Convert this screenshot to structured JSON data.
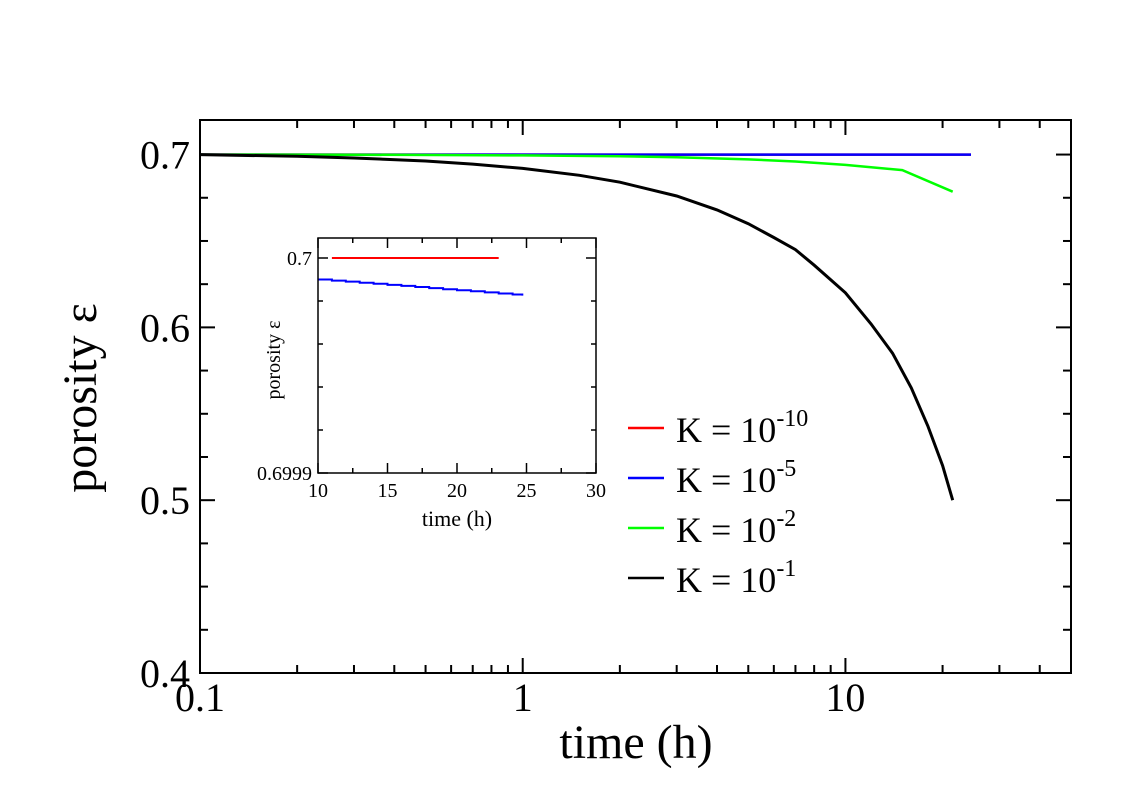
{
  "chart_data": [
    {
      "type": "line",
      "title": "",
      "xlabel": "time",
      "xlabel_unit": "(h)",
      "ylabel": "porosity",
      "ylabel_symbol": "ε",
      "xscale": "log",
      "xlim": [
        0.1,
        50
      ],
      "ylim": [
        0.4,
        0.72
      ],
      "xticks": [
        0.1,
        1,
        10
      ],
      "xtick_labels": [
        "0.1",
        "1",
        "10"
      ],
      "yticks": [
        0.4,
        0.5,
        0.6,
        0.7
      ],
      "ytick_labels": [
        "0.4",
        "0.5",
        "0.6",
        "0.7"
      ],
      "grid": false,
      "legend_position": "center-right",
      "series": [
        {
          "name": "K = 10^-10",
          "label_base": "K = 10",
          "label_exp": "-10",
          "color": "#ff0000",
          "x": [
            0.1,
            24.5
          ],
          "y": [
            0.7,
            0.7
          ]
        },
        {
          "name": "K = 10^-5",
          "label_base": "K = 10",
          "label_exp": "-5",
          "color": "#0000ff",
          "x": [
            0.1,
            24.5
          ],
          "y": [
            0.7,
            0.7
          ]
        },
        {
          "name": "K = 10^-2",
          "label_base": "K = 10",
          "label_exp": "-2",
          "color": "#00ff00",
          "x": [
            0.1,
            0.3,
            1,
            2,
            3,
            5,
            7,
            10,
            15,
            21.5
          ],
          "y": [
            0.7,
            0.6999,
            0.6995,
            0.699,
            0.6985,
            0.6972,
            0.696,
            0.694,
            0.691,
            0.6785
          ]
        },
        {
          "name": "K = 10^-1",
          "label_base": "K = 10",
          "label_exp": "-1",
          "color": "#000000",
          "x": [
            0.1,
            0.2,
            0.3,
            0.5,
            0.7,
            1,
            1.5,
            2,
            3,
            4,
            5,
            6,
            7,
            8,
            10,
            12,
            14,
            16,
            18,
            20,
            21.5
          ],
          "y": [
            0.7,
            0.699,
            0.698,
            0.6963,
            0.6945,
            0.692,
            0.688,
            0.684,
            0.676,
            0.668,
            0.66,
            0.652,
            0.645,
            0.636,
            0.62,
            0.602,
            0.585,
            0.565,
            0.543,
            0.52,
            0.5
          ]
        }
      ]
    },
    {
      "type": "line",
      "inset": true,
      "title": "",
      "xlabel": "time (h)",
      "ylabel": "porosity  ε",
      "xlim": [
        10,
        30
      ],
      "ylim": [
        0.6999,
        0.70001
      ],
      "xticks": [
        10,
        15,
        20,
        25,
        30
      ],
      "xtick_labels": [
        "10",
        "15",
        "20",
        "25",
        "30"
      ],
      "yticks": [
        0.6999,
        0.7
      ],
      "ytick_labels": [
        "0.6999",
        "0.7"
      ],
      "grid": false,
      "series": [
        {
          "name": "K = 10^-10",
          "color": "#ff0000",
          "x": [
            11,
            23
          ],
          "y": [
            0.7,
            0.7
          ]
        },
        {
          "name": "K = 10^-5",
          "color": "#0000ff",
          "x": [
            10,
            11,
            12,
            13,
            14,
            15,
            16,
            17,
            18,
            19,
            20,
            21,
            22,
            23,
            24,
            24.7
          ],
          "y": [
            0.69999,
            0.6999895,
            0.699989,
            0.6999885,
            0.699988,
            0.6999875,
            0.699987,
            0.6999865,
            0.699986,
            0.6999855,
            0.699985,
            0.6999845,
            0.699984,
            0.6999835,
            0.699983,
            0.6999825
          ]
        }
      ]
    }
  ]
}
